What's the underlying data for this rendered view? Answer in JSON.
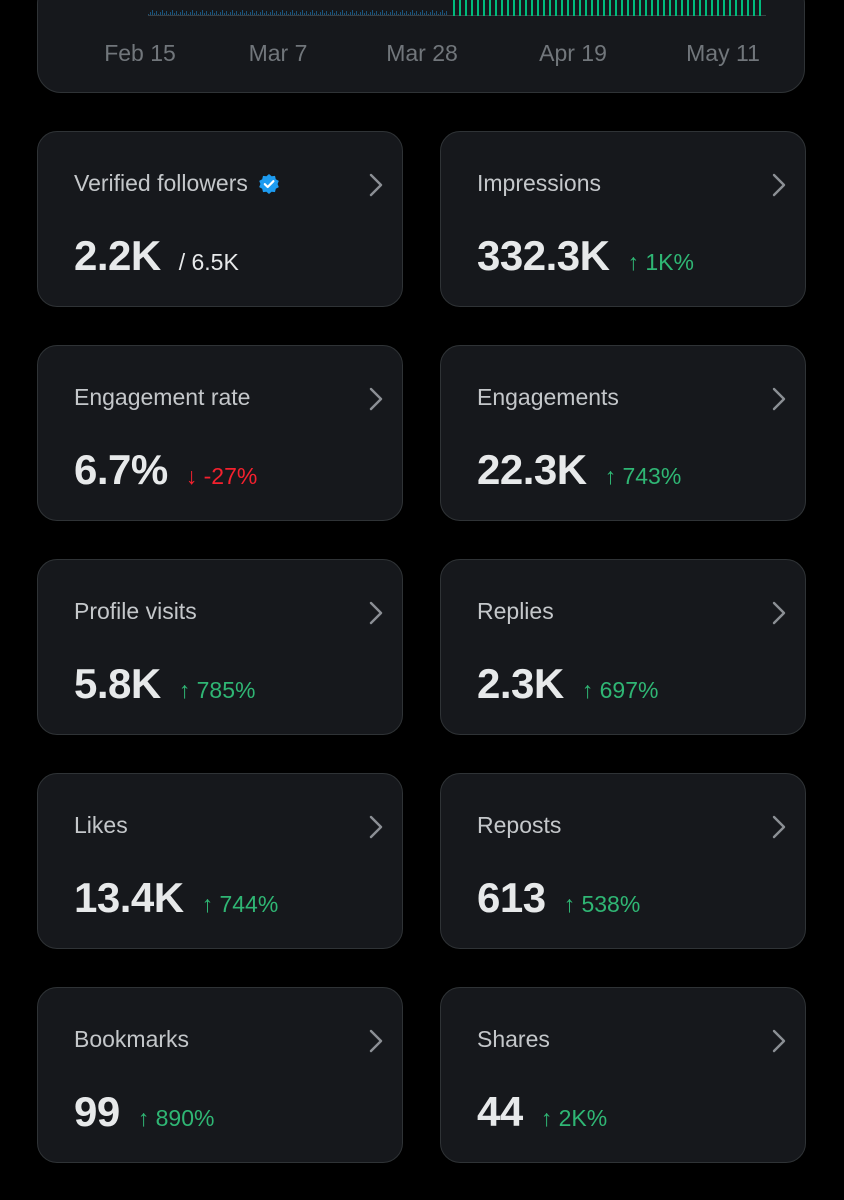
{
  "chart": {
    "x_ticks": [
      "Feb 15",
      "Mar 7",
      "Mar 28",
      "Apr 19",
      "May 11"
    ],
    "bar_color": "#1d9bf0",
    "bar_highlight_color": "#00ba7c"
  },
  "colors": {
    "positive": "#2fb674",
    "negative": "#f4212e",
    "verified": "#1d9bf0",
    "card_bg": "#16181c",
    "card_border": "#2f3336"
  },
  "metrics": [
    {
      "label": "Verified followers",
      "value": "2.2K",
      "total": "/ 6.5K",
      "change": "",
      "direction": "none",
      "icon": "verified-badge-icon"
    },
    {
      "label": "Impressions",
      "value": "332.3K",
      "total": "",
      "change": "↑ 1K%",
      "direction": "up"
    },
    {
      "label": "Engagement rate",
      "value": "6.7%",
      "total": "",
      "change": "↓ -27%",
      "direction": "down"
    },
    {
      "label": "Engagements",
      "value": "22.3K",
      "total": "",
      "change": "↑ 743%",
      "direction": "up"
    },
    {
      "label": "Profile visits",
      "value": "5.8K",
      "total": "",
      "change": "↑ 785%",
      "direction": "up"
    },
    {
      "label": "Replies",
      "value": "2.3K",
      "total": "",
      "change": "↑ 697%",
      "direction": "up"
    },
    {
      "label": "Likes",
      "value": "13.4K",
      "total": "",
      "change": "↑ 744%",
      "direction": "up"
    },
    {
      "label": "Reposts",
      "value": "613",
      "total": "",
      "change": "↑ 538%",
      "direction": "up"
    },
    {
      "label": "Bookmarks",
      "value": "99",
      "total": "",
      "change": "↑ 890%",
      "direction": "up"
    },
    {
      "label": "Shares",
      "value": "44",
      "total": "",
      "change": "↑ 2K%",
      "direction": "up"
    }
  ]
}
